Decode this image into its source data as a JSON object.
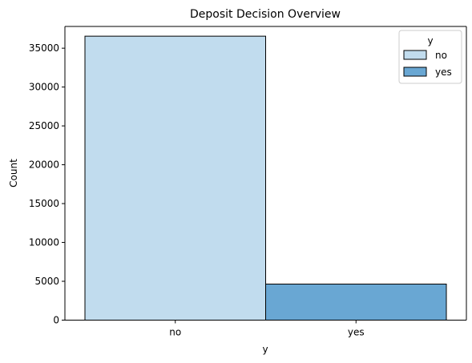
{
  "chart_data": {
    "type": "bar",
    "title": "Deposit Decision Overview",
    "xlabel": "y",
    "ylabel": "Count",
    "categories": [
      "no",
      "yes"
    ],
    "values": [
      36548,
      4640
    ],
    "ylim": [
      0,
      37800
    ],
    "yticks": [
      0,
      5000,
      10000,
      15000,
      20000,
      25000,
      30000,
      35000
    ],
    "ytick_labels": [
      "0",
      "5000",
      "10000",
      "15000",
      "20000",
      "25000",
      "30000",
      "35000"
    ],
    "grid": false,
    "legend": {
      "title": "y",
      "placement": "top-right",
      "entries": [
        "no",
        "yes"
      ]
    },
    "colors": {
      "no": "#c1dcee",
      "yes": "#69a7d3",
      "edge": "#000000"
    }
  }
}
